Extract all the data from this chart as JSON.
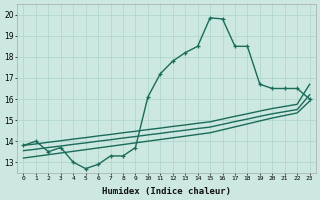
{
  "xlabel": "Humidex (Indice chaleur)",
  "xlim": [
    -0.5,
    23.5
  ],
  "ylim": [
    12.5,
    20.5
  ],
  "yticks": [
    13,
    14,
    15,
    16,
    17,
    18,
    19,
    20
  ],
  "xticks": [
    0,
    1,
    2,
    3,
    4,
    5,
    6,
    7,
    8,
    9,
    10,
    11,
    12,
    13,
    14,
    15,
    16,
    17,
    18,
    19,
    20,
    21,
    22,
    23
  ],
  "background_color": "#cce8e0",
  "grid_color": "#b0d8d0",
  "line_color": "#1a6b5a",
  "line_width": 1.0,
  "marker": "+",
  "marker_size": 3.5,
  "x": [
    0,
    1,
    2,
    3,
    4,
    5,
    6,
    7,
    8,
    9,
    10,
    11,
    12,
    13,
    14,
    15,
    16,
    17,
    18,
    19,
    20,
    21,
    22,
    23
  ],
  "y_main": [
    13.8,
    14.0,
    13.5,
    13.7,
    13.0,
    12.7,
    12.9,
    13.3,
    13.3,
    13.7,
    16.1,
    17.2,
    17.8,
    18.2,
    18.5,
    19.85,
    19.8,
    18.5,
    18.5,
    16.7,
    16.5,
    16.5,
    16.5,
    16.0
  ],
  "y_line1": [
    13.8,
    13.87,
    13.95,
    14.02,
    14.1,
    14.17,
    14.25,
    14.32,
    14.4,
    14.47,
    14.55,
    14.62,
    14.7,
    14.77,
    14.85,
    14.92,
    15.05,
    15.18,
    15.3,
    15.43,
    15.55,
    15.65,
    15.75,
    16.7
  ],
  "y_line2": [
    13.55,
    13.62,
    13.7,
    13.77,
    13.85,
    13.92,
    14.0,
    14.07,
    14.15,
    14.22,
    14.3,
    14.37,
    14.45,
    14.52,
    14.6,
    14.67,
    14.8,
    14.93,
    15.05,
    15.18,
    15.3,
    15.4,
    15.5,
    16.2
  ],
  "y_line3": [
    13.2,
    13.28,
    13.36,
    13.44,
    13.52,
    13.6,
    13.68,
    13.76,
    13.84,
    13.92,
    14.0,
    14.08,
    14.16,
    14.24,
    14.32,
    14.4,
    14.54,
    14.68,
    14.82,
    14.96,
    15.1,
    15.22,
    15.34,
    15.9
  ]
}
